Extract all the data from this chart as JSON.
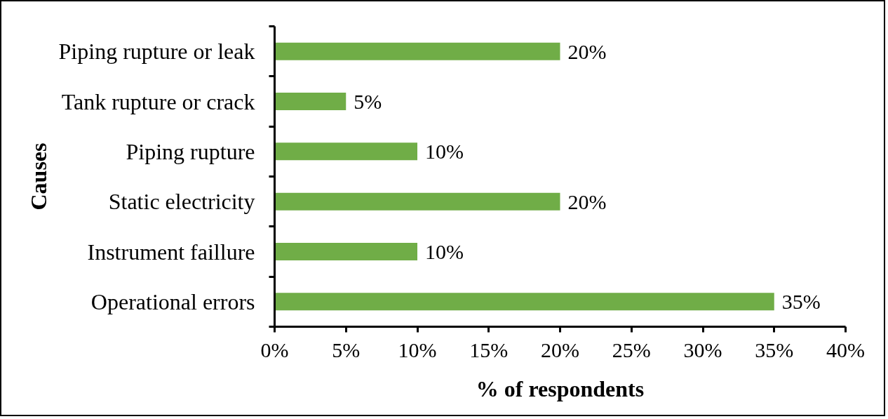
{
  "chart_data": {
    "type": "bar",
    "orientation": "horizontal",
    "xlabel": "% of respondents",
    "ylabel": "Causes",
    "categories": [
      "Piping rupture or leak",
      "Tank rupture or crack",
      "Piping rupture",
      "Static electricity",
      "Instrument faillure",
      "Operational errors"
    ],
    "values": [
      20,
      5,
      10,
      20,
      10,
      35
    ],
    "value_labels": [
      "20%",
      "5%",
      "10%",
      "20%",
      "10%",
      "35%"
    ],
    "color": "#70ad47",
    "xlim": [
      0,
      40
    ],
    "xticks": [
      {
        "value": 0,
        "label": "0%"
      },
      {
        "value": 5,
        "label": "5%"
      },
      {
        "value": 10,
        "label": "10%"
      },
      {
        "value": 15,
        "label": "15%"
      },
      {
        "value": 20,
        "label": "20%"
      },
      {
        "value": 25,
        "label": "25%"
      },
      {
        "value": 30,
        "label": "30%"
      },
      {
        "value": 35,
        "label": "35%"
      },
      {
        "value": 40,
        "label": "40%"
      }
    ],
    "grid": false
  }
}
